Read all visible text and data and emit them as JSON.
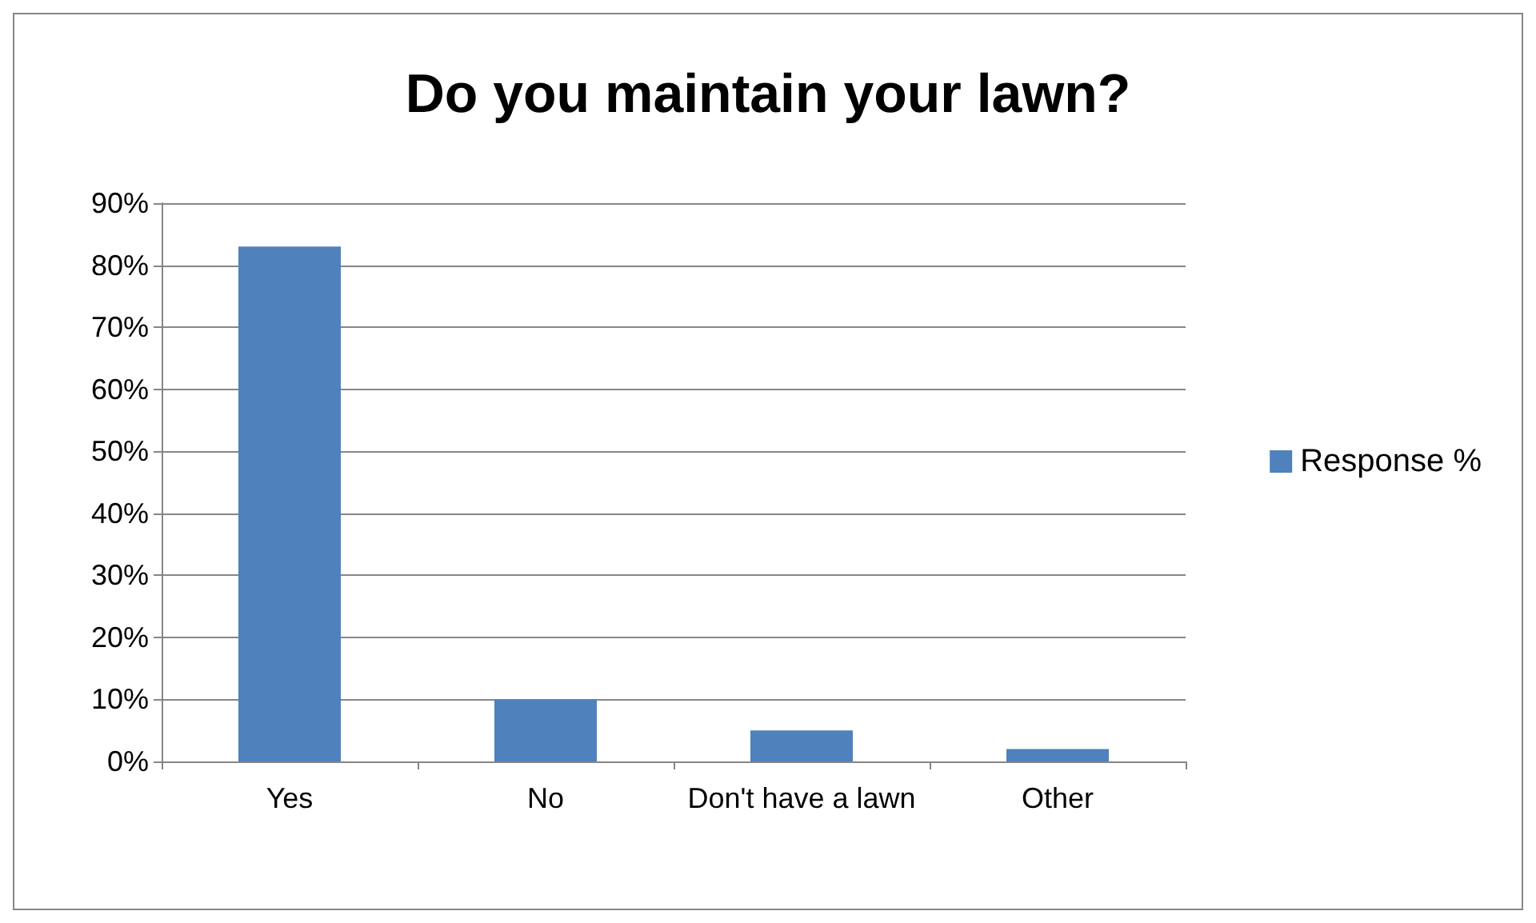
{
  "chart_data": {
    "type": "bar",
    "title": "Do you maintain your lawn?",
    "categories": [
      "Yes",
      "No",
      "Don't have a lawn",
      "Other"
    ],
    "series": [
      {
        "name": "Response %",
        "color": "#4f81bd",
        "values": [
          83,
          10,
          5,
          2
        ]
      }
    ],
    "ylim": [
      0,
      90
    ],
    "yticks": [
      {
        "value": 0,
        "label": "0%"
      },
      {
        "value": 10,
        "label": "10%"
      },
      {
        "value": 20,
        "label": "20%"
      },
      {
        "value": 30,
        "label": "30%"
      },
      {
        "value": 40,
        "label": "40%"
      },
      {
        "value": 50,
        "label": "50%"
      },
      {
        "value": 60,
        "label": "60%"
      },
      {
        "value": 70,
        "label": "70%"
      },
      {
        "value": 80,
        "label": "80%"
      },
      {
        "value": 90,
        "label": "90%"
      }
    ],
    "grid": "y",
    "legend": "right"
  }
}
